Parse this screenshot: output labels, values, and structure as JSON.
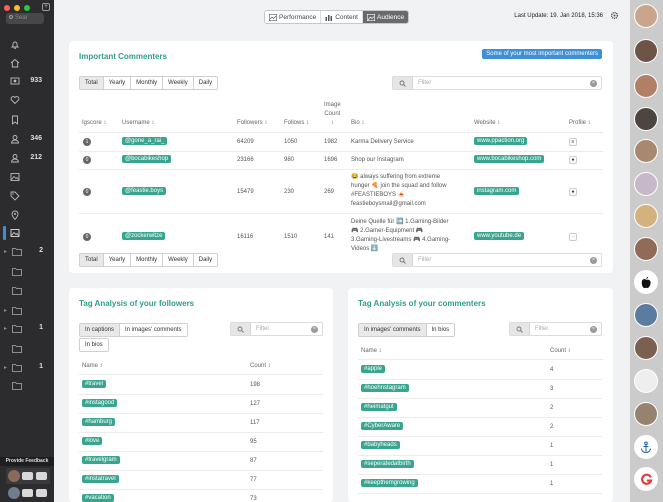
{
  "sidebar": {
    "search_placeholder": "Sear",
    "counts": {
      "photos": "933",
      "users": "346",
      "follow": "212"
    },
    "folders": [
      {
        "count": ""
      },
      {
        "count": "2"
      },
      {
        "count": ""
      },
      {
        "count": ""
      },
      {
        "count": "1"
      },
      {
        "count": ""
      },
      {
        "count": "1"
      },
      {
        "count": ""
      }
    ],
    "feedback_label": "Provide Feedback"
  },
  "header": {
    "tabs": [
      {
        "label": "Performance",
        "icon": "line-chart-icon"
      },
      {
        "label": "Content",
        "icon": "bar-chart-icon"
      },
      {
        "label": "Audience",
        "icon": "audience-icon"
      }
    ],
    "active_tab": "Audience",
    "last_update": "Last Update: 19. Jan 2018, 15:36"
  },
  "commenters": {
    "title": "Important Commenters",
    "action_button": "Some of your most important commenters",
    "periods": [
      "Total",
      "Yearly",
      "Monthly",
      "Weekly",
      "Daily"
    ],
    "filter_placeholder": "Filter",
    "columns": {
      "igscore": "Igscore",
      "username": "Username",
      "followers": "Followers",
      "follows": "Follows",
      "image_count_1": "Image",
      "image_count_2": "Count",
      "bio": "Bio",
      "website": "Website",
      "profile": "Profile"
    },
    "rows": [
      {
        "score": "1",
        "username": "@gone_a_rai_",
        "followers": "64209",
        "follows": "1050",
        "images": "1982",
        "bio": [
          "Karma Delivery Service"
        ],
        "website": "www.ppaction.org"
      },
      {
        "score": "0",
        "username": "@bocabikeshop",
        "followers": "23166",
        "follows": "980",
        "images": "1696",
        "bio": [
          "Shop our Instagram"
        ],
        "website": "www.bocabikeshop.com"
      },
      {
        "score": "0",
        "username": "@feastie.boys",
        "followers": "15479",
        "follows": "230",
        "images": "269",
        "bio": [
          "😂 always suffering from extreme",
          "hunger 🍕 join the squad and follow",
          "#FEASTIEBOYS 🍝",
          "feastieboysmail@gmail.com"
        ],
        "website": "instagram.com"
      },
      {
        "score": "0",
        "username": "@zockerwitze",
        "followers": "16116",
        "follows": "1510",
        "images": "141",
        "bio": [
          "Deine Quelle für ➡️ 1.Gaming-Bilder",
          "🎮 2.Gamer-Equipment 🎮",
          "3.Gaming-Livestreams 🎮 4.Gaming-",
          "Videos ⬇️"
        ],
        "website": "www.youtube.de"
      }
    ]
  },
  "followers_tags": {
    "title": "Tag Analysis of your followers",
    "options": [
      "In captions",
      "In images' comments",
      "In bios"
    ],
    "filter_placeholder": "Filter",
    "col_name": "Name",
    "col_count": "Count",
    "rows": [
      {
        "tag": "#travel",
        "count": "198"
      },
      {
        "tag": "#instagood",
        "count": "127"
      },
      {
        "tag": "#hamburg",
        "count": "117"
      },
      {
        "tag": "#love",
        "count": "95"
      },
      {
        "tag": "#travelgram",
        "count": "87"
      },
      {
        "tag": "#instatravel",
        "count": "77"
      },
      {
        "tag": "#vacation",
        "count": "73"
      }
    ]
  },
  "commenters_tags": {
    "title": "Tag Analysis of your commenters",
    "options": [
      "In images' comments",
      "In bios"
    ],
    "filter_placeholder": "Filter",
    "col_name": "Name",
    "col_count": "Count",
    "rows": [
      {
        "tag": "#apple",
        "count": "4"
      },
      {
        "tag": "#hoehnstagram",
        "count": "3"
      },
      {
        "tag": "#heimatgut",
        "count": "2"
      },
      {
        "tag": "#CyberAware",
        "count": "2"
      },
      {
        "tag": "#babyheads",
        "count": "1"
      },
      {
        "tag": "#seperatedatbirth",
        "count": "1"
      },
      {
        "tag": "#keepthemgrowing",
        "count": "1"
      }
    ]
  },
  "colors": {
    "accent": "#39a58e",
    "title": "#2e9e8a",
    "button": "#3f8fd7",
    "sidebar": "#2c2c2e"
  }
}
